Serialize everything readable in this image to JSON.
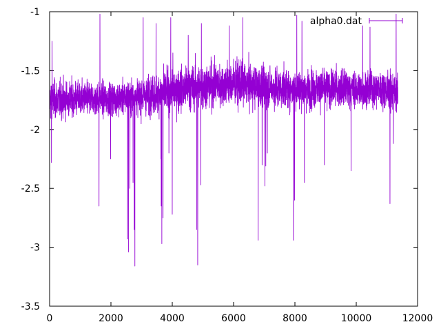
{
  "chart_data": {
    "type": "line",
    "title": "",
    "xlabel": "",
    "ylabel": "",
    "xlim": [
      0,
      12000
    ],
    "ylim": [
      -3.5,
      -1
    ],
    "grid": false,
    "legend_position": "top-right",
    "x_ticks": [
      0,
      2000,
      4000,
      6000,
      8000,
      10000,
      12000
    ],
    "x_tick_labels": [
      "0",
      "2000",
      "4000",
      "6000",
      "8000",
      "10000",
      "12000"
    ],
    "y_ticks": [
      -3.5,
      -3,
      -2.5,
      -2,
      -1.5,
      -1
    ],
    "y_tick_labels": [
      "-3.5",
      "-3",
      "-2.5",
      "-2",
      "-1.5",
      "-1"
    ],
    "series": [
      {
        "name": "alpha0.dat",
        "color": "#9400d3",
        "n_points": 11360,
        "baseline": [
          [
            0,
            -1.75
          ],
          [
            1000,
            -1.74
          ],
          [
            2000,
            -1.74
          ],
          [
            3000,
            -1.72
          ],
          [
            4000,
            -1.67
          ],
          [
            5000,
            -1.63
          ],
          [
            6000,
            -1.61
          ],
          [
            7000,
            -1.64
          ],
          [
            8000,
            -1.66
          ],
          [
            9000,
            -1.65
          ],
          [
            10000,
            -1.66
          ],
          [
            11000,
            -1.66
          ],
          [
            11360,
            -1.68
          ]
        ],
        "band_halfwidth": [
          [
            0,
            0.25
          ],
          [
            1000,
            0.22
          ],
          [
            2000,
            0.21
          ],
          [
            3000,
            0.23
          ],
          [
            4000,
            0.28
          ],
          [
            5000,
            0.3
          ],
          [
            6000,
            0.29
          ],
          [
            7000,
            0.26
          ],
          [
            8000,
            0.25
          ],
          [
            9000,
            0.25
          ],
          [
            10000,
            0.24
          ],
          [
            11000,
            0.23
          ],
          [
            11360,
            0.26
          ]
        ],
        "spikes": [
          [
            60,
            -2.28
          ],
          [
            80,
            -1.25
          ],
          [
            1610,
            -2.65
          ],
          [
            1640,
            -1.02
          ],
          [
            1990,
            -2.25
          ],
          [
            2540,
            -2.93
          ],
          [
            2570,
            -3.04
          ],
          [
            2620,
            -2.5
          ],
          [
            2720,
            -2.45
          ],
          [
            2760,
            -2.85
          ],
          [
            2780,
            -3.16
          ],
          [
            3050,
            -1.05
          ],
          [
            3470,
            -1.1
          ],
          [
            3630,
            -2.25
          ],
          [
            3640,
            -2.65
          ],
          [
            3660,
            -2.97
          ],
          [
            3700,
            -2.75
          ],
          [
            3890,
            -2.2
          ],
          [
            3950,
            -1.05
          ],
          [
            4000,
            -2.72
          ],
          [
            4020,
            -1.35
          ],
          [
            4520,
            -1.2
          ],
          [
            4800,
            -2.85
          ],
          [
            4830,
            -3.15
          ],
          [
            4930,
            -2.47
          ],
          [
            4950,
            -1.1
          ],
          [
            5860,
            -1.12
          ],
          [
            6300,
            -1.05
          ],
          [
            6800,
            -2.94
          ],
          [
            6930,
            -2.3
          ],
          [
            7020,
            -2.48
          ],
          [
            7050,
            -2.31
          ],
          [
            7100,
            -2.2
          ],
          [
            7950,
            -2.94
          ],
          [
            7990,
            -2.6
          ],
          [
            8060,
            -1.03
          ],
          [
            8230,
            -2.88
          ],
          [
            8230,
            -1.08
          ],
          [
            8310,
            -2.45
          ],
          [
            8960,
            -2.3
          ],
          [
            9830,
            -2.35
          ],
          [
            10210,
            -1.12
          ],
          [
            10450,
            -1.13
          ],
          [
            11100,
            -2.63
          ],
          [
            11210,
            -2.12
          ],
          [
            11300,
            -1.02
          ]
        ]
      }
    ]
  }
}
